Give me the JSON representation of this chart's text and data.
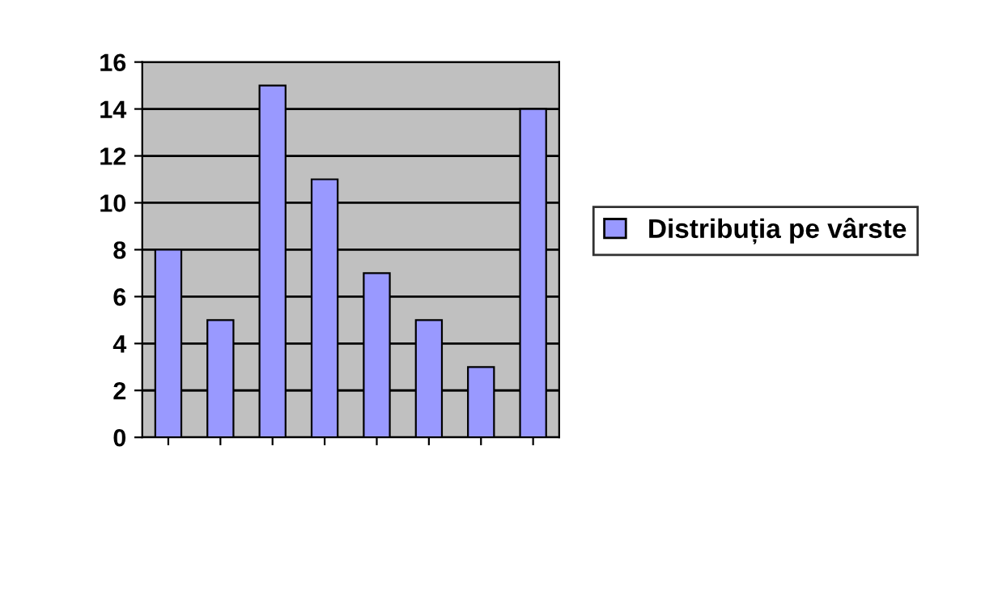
{
  "chart_data": {
    "type": "bar",
    "categories": [
      null,
      null,
      null,
      null,
      null,
      null,
      null,
      null
    ],
    "series": [
      {
        "name": "Distribuția pe vârste",
        "color": "#9999ff",
        "values": [
          8,
          5,
          15,
          11,
          7,
          5,
          3,
          14
        ]
      }
    ],
    "ylim": [
      0,
      16
    ],
    "yticks": [
      0,
      2,
      4,
      6,
      8,
      10,
      12,
      14,
      16
    ],
    "grid": "y",
    "legend": "right"
  }
}
